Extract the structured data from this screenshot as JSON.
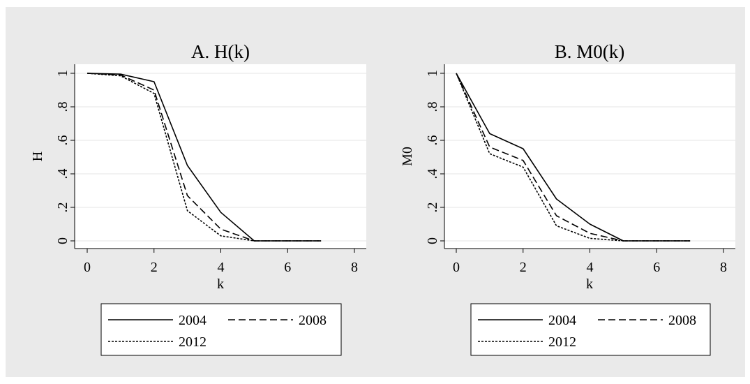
{
  "colors": {
    "outer_background": "#eaeaea",
    "plot_background": "#ffffff",
    "gridline": "#e6e6e6",
    "ink": "#000000"
  },
  "chart_data": [
    {
      "type": "line",
      "title": "A. H(k)",
      "xlabel": "k",
      "ylabel": "H",
      "xlim": [
        0,
        8
      ],
      "ylim": [
        0,
        1
      ],
      "xticks": [
        "0",
        "2",
        "4",
        "6",
        "8"
      ],
      "yticks": [
        "0",
        ".2",
        ".4",
        ".6",
        ".8",
        "1"
      ],
      "grid": true,
      "legend_position": "bottom",
      "x": [
        0,
        1,
        2,
        3,
        4,
        5,
        6,
        7
      ],
      "series": [
        {
          "name": "2004",
          "style": "solid",
          "values": [
            1,
            0.995,
            0.95,
            0.45,
            0.17,
            0,
            0,
            0
          ]
        },
        {
          "name": "2008",
          "style": "dashed",
          "values": [
            1,
            0.99,
            0.9,
            0.27,
            0.07,
            0,
            0,
            0
          ]
        },
        {
          "name": "2012",
          "style": "dotted",
          "values": [
            1,
            0.985,
            0.88,
            0.18,
            0.03,
            0,
            0,
            0
          ]
        }
      ]
    },
    {
      "type": "line",
      "title": "B. M0(k)",
      "xlabel": "k",
      "ylabel": "M0",
      "xlim": [
        0,
        8
      ],
      "ylim": [
        0,
        1
      ],
      "xticks": [
        "0",
        "2",
        "4",
        "6",
        "8"
      ],
      "yticks": [
        "0",
        ".2",
        ".4",
        ".6",
        ".8",
        "1"
      ],
      "grid": true,
      "legend_position": "bottom",
      "x": [
        0,
        1,
        2,
        3,
        4,
        5,
        6,
        7
      ],
      "series": [
        {
          "name": "2004",
          "style": "solid",
          "values": [
            1,
            0.64,
            0.55,
            0.25,
            0.1,
            0,
            0,
            0
          ]
        },
        {
          "name": "2008",
          "style": "dashed",
          "values": [
            1,
            0.56,
            0.48,
            0.15,
            0.045,
            0,
            0,
            0
          ]
        },
        {
          "name": "2012",
          "style": "dotted",
          "values": [
            1,
            0.52,
            0.44,
            0.09,
            0.015,
            0,
            0,
            0
          ]
        }
      ]
    }
  ]
}
